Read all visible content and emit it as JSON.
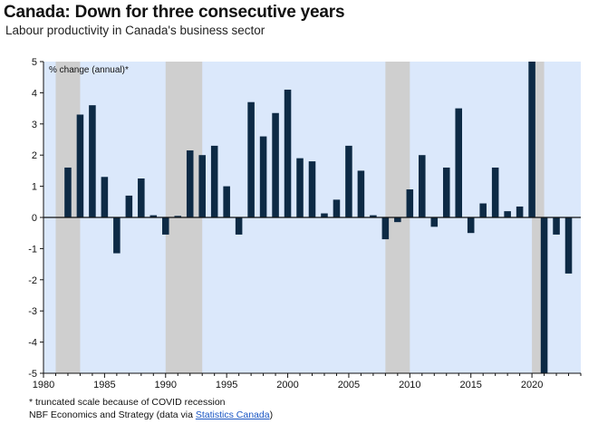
{
  "title": "Canada: Down for three consecutive years",
  "subtitle": "Labour productivity in Canada's business sector",
  "footnote": "* truncated scale because of COVID recession",
  "source_prefix": "NBF Economics and Strategy (data via ",
  "source_link": "Statistics Canada",
  "source_suffix": ")",
  "colors": {
    "plot_background": "#dbe8fb",
    "recession_shading": "#cfcfcf",
    "bars": "#0d2a45",
    "link": "#1a56c4"
  },
  "chart_data": {
    "type": "bar",
    "ylabel": "% change (annual)*",
    "ylim": [
      -5,
      5
    ],
    "yticks": [
      5,
      4,
      3,
      2,
      1,
      0,
      -1,
      -2,
      -3,
      -4,
      -5
    ],
    "xlim": [
      1980,
      2024
    ],
    "xticks": [
      1980,
      1985,
      1990,
      1995,
      2000,
      2005,
      2010,
      2015,
      2020
    ],
    "x": [
      1981,
      1982,
      1983,
      1984,
      1985,
      1986,
      1987,
      1988,
      1989,
      1990,
      1991,
      1992,
      1993,
      1994,
      1995,
      1996,
      1997,
      1998,
      1999,
      2000,
      2001,
      2002,
      2003,
      2004,
      2005,
      2006,
      2007,
      2008,
      2009,
      2010,
      2011,
      2012,
      2013,
      2014,
      2015,
      2016,
      2017,
      2018,
      2019,
      2020,
      2021,
      2022,
      2023
    ],
    "values": [
      0.0,
      1.6,
      3.3,
      3.6,
      1.3,
      -1.15,
      0.7,
      1.25,
      0.07,
      -0.55,
      0.05,
      2.15,
      2.0,
      2.3,
      1.0,
      -0.55,
      3.7,
      2.6,
      3.35,
      4.1,
      1.9,
      1.8,
      0.13,
      0.57,
      2.3,
      1.5,
      0.07,
      -0.7,
      -0.15,
      0.9,
      2.0,
      -0.3,
      1.6,
      3.5,
      -0.5,
      0.45,
      1.6,
      0.2,
      0.35,
      5.0,
      -5.0,
      -0.55,
      -1.8
    ],
    "recessions": [
      [
        1981,
        1983
      ],
      [
        1990,
        1993
      ],
      [
        2008,
        2010
      ],
      [
        2020,
        2021
      ]
    ],
    "grid": false,
    "legend": "none"
  }
}
